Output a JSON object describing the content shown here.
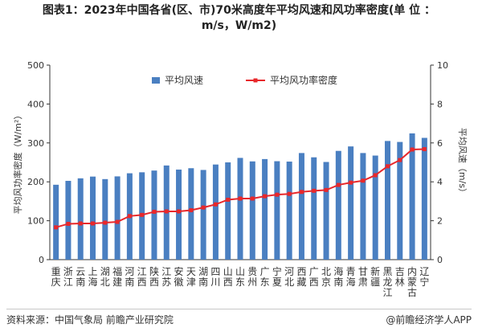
{
  "header": {
    "title_line1": "图表1：2023年中国各省(区、市)70米高度年平均风速和风功率密度(单 位 ：",
    "title_line2": "m/s，W/m2)"
  },
  "footer": {
    "source": "资料来源：中国气象局 前瞻产业研究院",
    "credit": "@前瞻经济学人APP"
  },
  "colors": {
    "bar": "#4a7fc1",
    "line": "#e8282b",
    "axis": "#333333",
    "text": "#333333"
  },
  "chart_data": {
    "type": "bar+line",
    "categories": [
      "重庆",
      "浙江",
      "云南",
      "上海",
      "湖北",
      "福建",
      "河南",
      "江西",
      "陕西",
      "江苏",
      "安徽",
      "天津",
      "湖南",
      "四川",
      "山西",
      "山东",
      "贵州",
      "广东",
      "宁夏",
      "河北",
      "西藏",
      "广西",
      "北京",
      "海南",
      "青海",
      "甘肃",
      "新疆",
      "黑龙江",
      "吉林",
      "内蒙古",
      "辽宁"
    ],
    "category_lines": [
      [
        "重",
        "庆"
      ],
      [
        "浙",
        "江"
      ],
      [
        "云",
        "南"
      ],
      [
        "上",
        "海"
      ],
      [
        "湖",
        "北"
      ],
      [
        "福",
        "建"
      ],
      [
        "河",
        "南"
      ],
      [
        "江",
        "西"
      ],
      [
        "陕",
        "西"
      ],
      [
        "江",
        "苏"
      ],
      [
        "安",
        "徽"
      ],
      [
        "天",
        "津"
      ],
      [
        "湖",
        "南"
      ],
      [
        "四",
        "川"
      ],
      [
        "山",
        "西"
      ],
      [
        "山",
        "东"
      ],
      [
        "贵",
        "州"
      ],
      [
        "广",
        "东"
      ],
      [
        "宁",
        "夏"
      ],
      [
        "河",
        "北"
      ],
      [
        "西",
        "藏"
      ],
      [
        "广",
        "西"
      ],
      [
        "北",
        "京"
      ],
      [
        "海",
        "南"
      ],
      [
        "青",
        "海"
      ],
      [
        "甘",
        "肃"
      ],
      [
        "新",
        "疆"
      ],
      [
        "黑",
        "龙",
        "江"
      ],
      [
        "吉",
        "林"
      ],
      [
        "内",
        "蒙",
        "古"
      ],
      [
        "辽",
        "宁"
      ]
    ],
    "series": [
      {
        "name": "平均风速",
        "type": "bar",
        "axis": "right",
        "values": [
          3.85,
          4.05,
          4.18,
          4.27,
          4.14,
          4.28,
          4.44,
          4.49,
          4.58,
          4.84,
          4.63,
          4.7,
          4.61,
          4.89,
          5.0,
          5.23,
          5.05,
          5.17,
          5.06,
          5.04,
          5.48,
          5.26,
          5.02,
          5.59,
          5.82,
          5.48,
          5.35,
          6.1,
          6.05,
          6.49,
          6.26
        ]
      },
      {
        "name": "平均风功率密度",
        "type": "line",
        "axis": "left",
        "values": [
          83,
          92,
          93,
          93,
          95,
          97,
          112,
          115,
          123,
          124,
          124,
          127,
          134,
          142,
          154,
          157,
          157,
          163,
          167,
          169,
          174,
          177,
          179,
          192,
          198,
          203,
          217,
          240,
          256,
          283,
          284
        ]
      }
    ],
    "yleft": {
      "label": "平均风功率密度（W/m²）",
      "ylim": [
        0,
        500
      ],
      "ticks": [
        0,
        100,
        200,
        300,
        400,
        500
      ]
    },
    "yright": {
      "label": "平均风速（m/s）",
      "ylim": [
        0,
        10
      ],
      "ticks": [
        0,
        2,
        4,
        6,
        8,
        10
      ]
    },
    "legend_position": "top",
    "grid": false
  }
}
